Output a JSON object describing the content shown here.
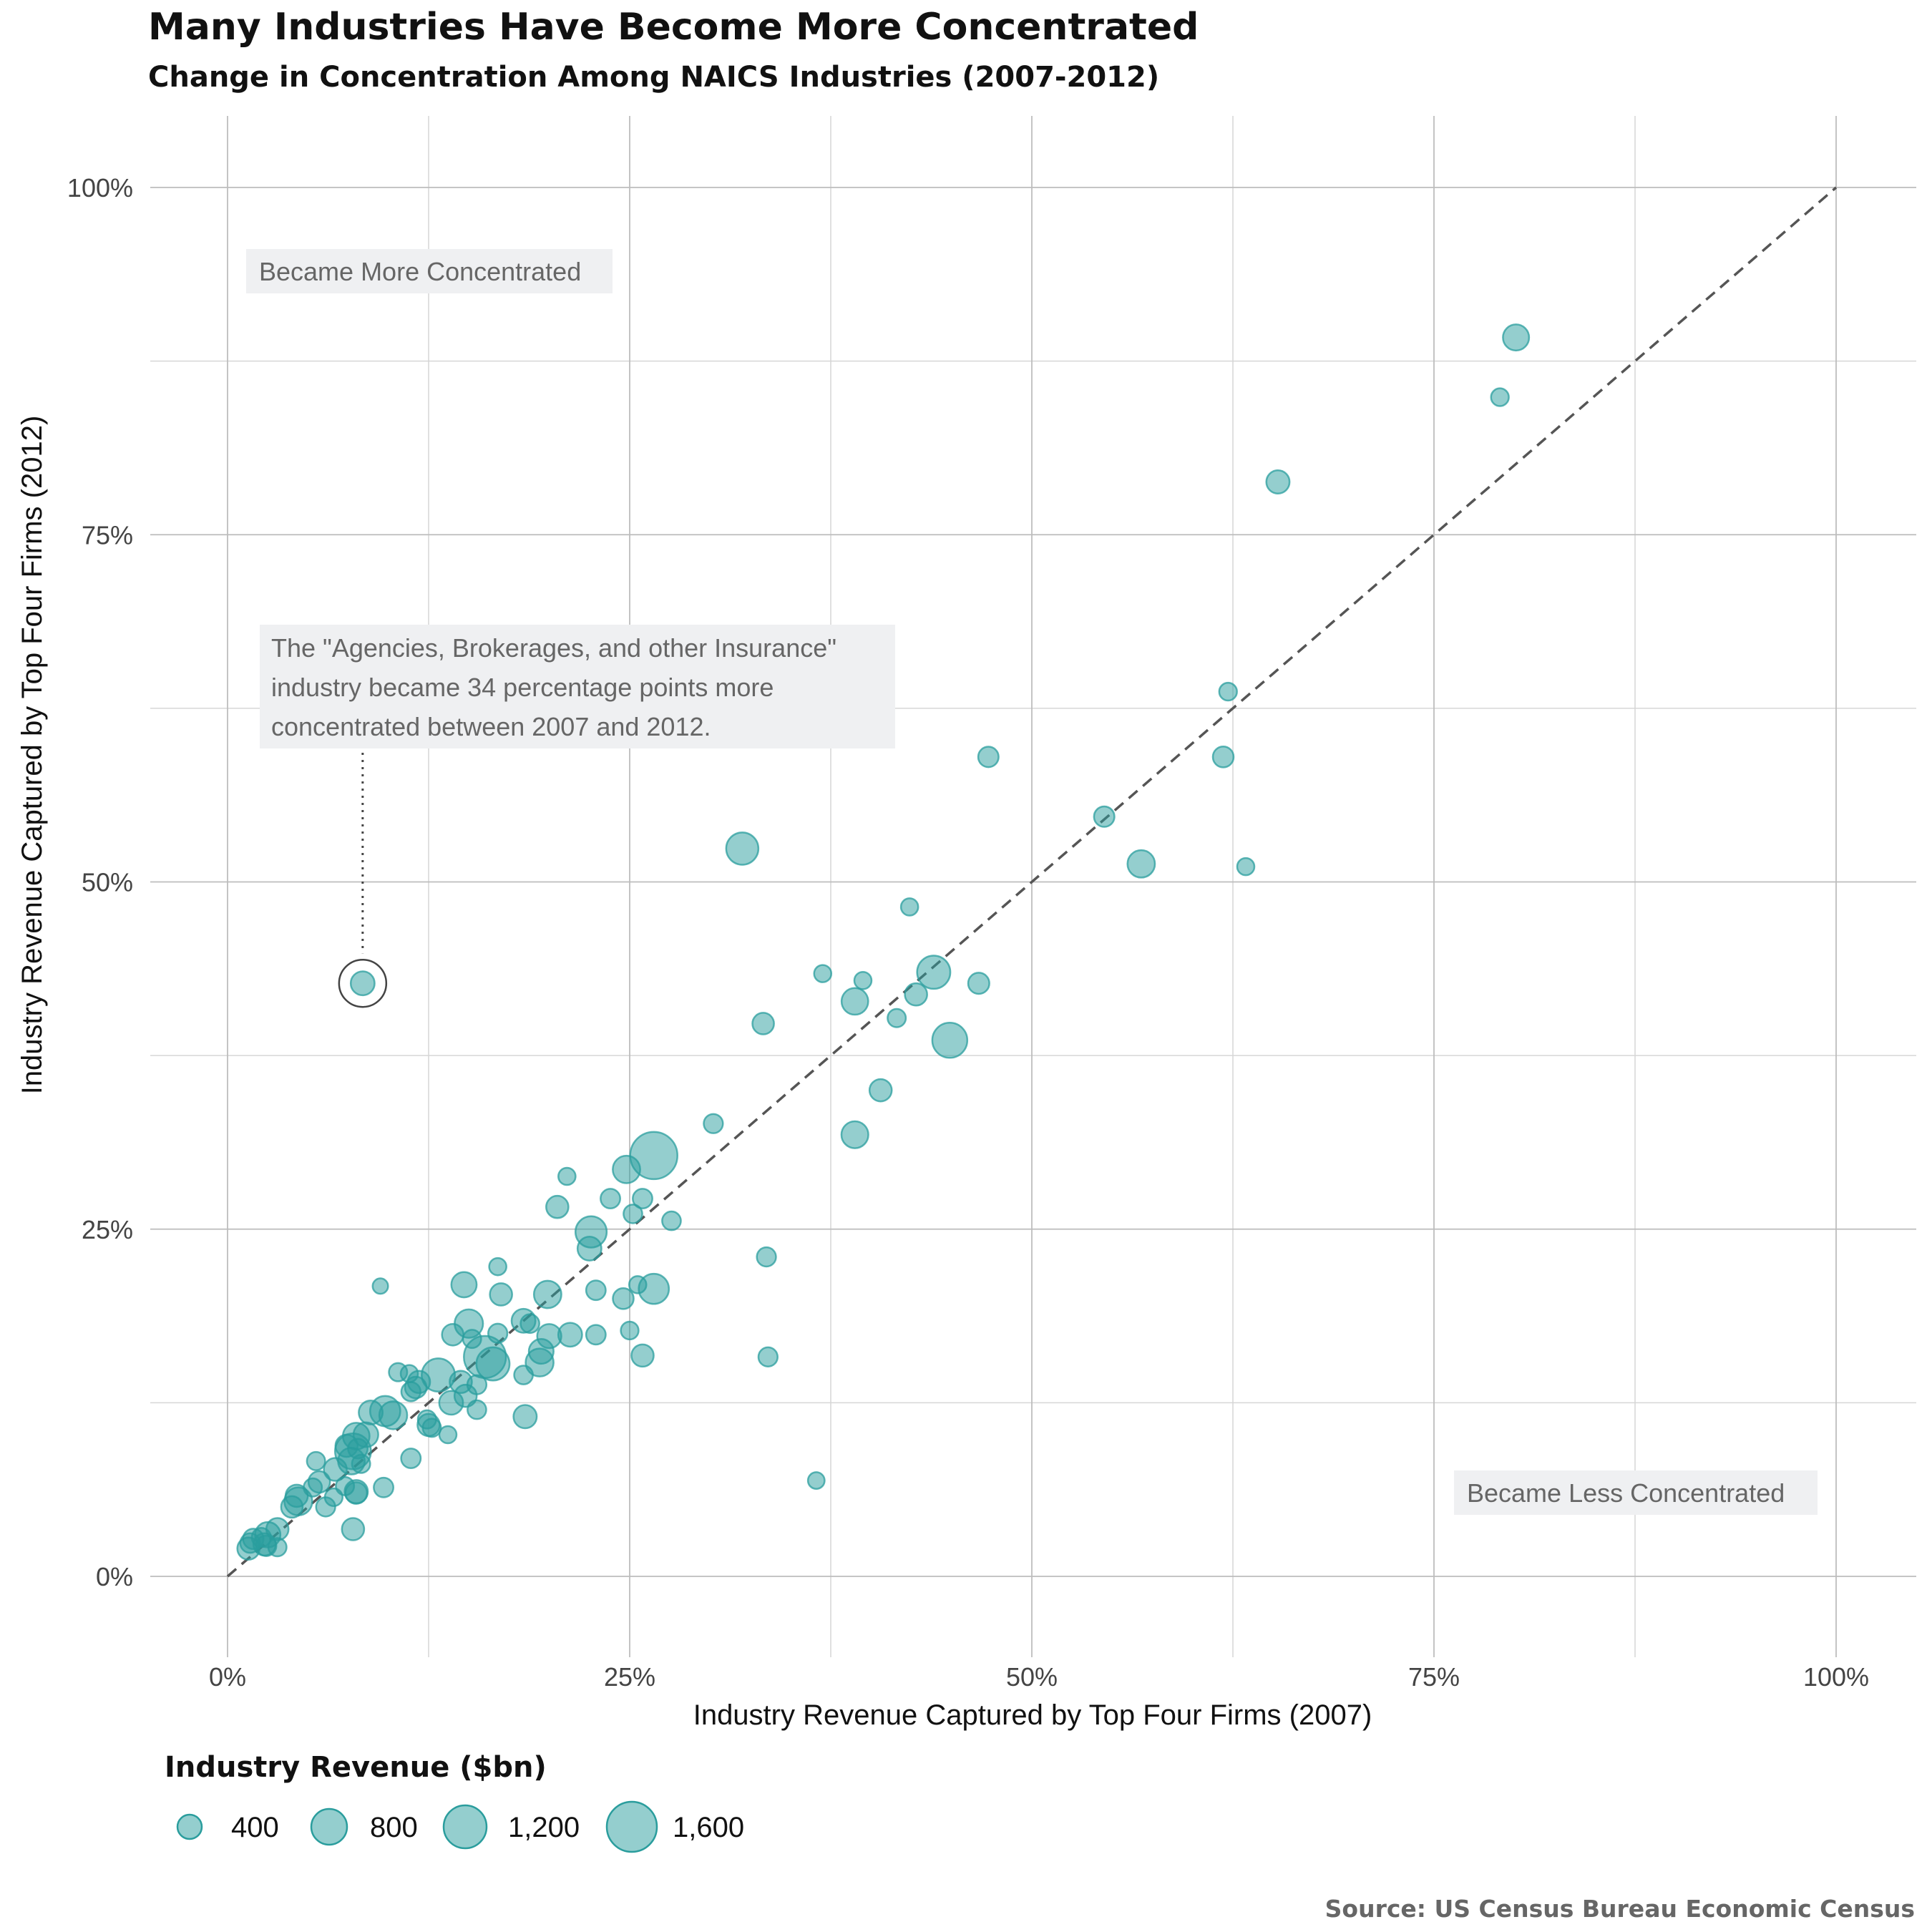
{
  "chart_data": {
    "type": "scatter",
    "title": "Many Industries Have Become More Concentrated",
    "subtitle": "Change in Concentration Among NAICS Industries (2007-2012)",
    "xlabel": "Industry Revenue Captured by Top Four Firms (2007)",
    "ylabel": "Industry Revenue Captured by Top Four Firms (2012)",
    "xlim": [
      0,
      1
    ],
    "ylim": [
      0,
      1
    ],
    "x_ticks": [
      0,
      0.25,
      0.5,
      0.75,
      1
    ],
    "y_ticks": [
      0,
      0.25,
      0.5,
      0.75,
      1
    ],
    "tick_labels": [
      "0%",
      "25%",
      "50%",
      "75%",
      "100%"
    ],
    "reference_line": {
      "type": "dashed",
      "from": [
        0,
        0
      ],
      "to": [
        1,
        1
      ]
    },
    "color": "#2a9d9d",
    "annotations": {
      "more": "Became More Concentrated",
      "less": "Became Less Concentrated",
      "callout_lines": [
        "The \"Agencies, Brokerages, and other Insurance\"",
        "industry became 34 percentage points more",
        "concentrated between 2007 and 2012."
      ],
      "callout_point": {
        "x": 0.084,
        "y": 0.427
      }
    },
    "legend": {
      "title": "Industry Revenue ($bn)",
      "entries": [
        {
          "label": "400",
          "value": 400
        },
        {
          "label": "800",
          "value": 800
        },
        {
          "label": "1,200",
          "value": 1200
        },
        {
          "label": "1,600",
          "value": 1600
        }
      ]
    },
    "points": [
      {
        "x": 0.801,
        "y": 0.892,
        "r": 330
      },
      {
        "x": 0.791,
        "y": 0.849,
        "r": 90
      },
      {
        "x": 0.653,
        "y": 0.788,
        "r": 230
      },
      {
        "x": 0.622,
        "y": 0.637,
        "r": 90
      },
      {
        "x": 0.473,
        "y": 0.59,
        "r": 150
      },
      {
        "x": 0.619,
        "y": 0.59,
        "r": 160
      },
      {
        "x": 0.545,
        "y": 0.547,
        "r": 150
      },
      {
        "x": 0.568,
        "y": 0.513,
        "r": 380
      },
      {
        "x": 0.633,
        "y": 0.511,
        "r": 80
      },
      {
        "x": 0.32,
        "y": 0.524,
        "r": 600
      },
      {
        "x": 0.424,
        "y": 0.482,
        "r": 80
      },
      {
        "x": 0.37,
        "y": 0.434,
        "r": 80
      },
      {
        "x": 0.395,
        "y": 0.429,
        "r": 80
      },
      {
        "x": 0.439,
        "y": 0.435,
        "r": 650
      },
      {
        "x": 0.467,
        "y": 0.427,
        "r": 170
      },
      {
        "x": 0.39,
        "y": 0.414,
        "r": 350
      },
      {
        "x": 0.428,
        "y": 0.419,
        "r": 200
      },
      {
        "x": 0.416,
        "y": 0.402,
        "r": 100
      },
      {
        "x": 0.333,
        "y": 0.398,
        "r": 180
      },
      {
        "x": 0.449,
        "y": 0.386,
        "r": 750
      },
      {
        "x": 0.406,
        "y": 0.35,
        "r": 200
      },
      {
        "x": 0.39,
        "y": 0.318,
        "r": 360
      },
      {
        "x": 0.302,
        "y": 0.326,
        "r": 120
      },
      {
        "x": 0.265,
        "y": 0.303,
        "r": 1600
      },
      {
        "x": 0.248,
        "y": 0.293,
        "r": 380
      },
      {
        "x": 0.211,
        "y": 0.288,
        "r": 80
      },
      {
        "x": 0.238,
        "y": 0.272,
        "r": 130
      },
      {
        "x": 0.258,
        "y": 0.272,
        "r": 130
      },
      {
        "x": 0.205,
        "y": 0.266,
        "r": 200
      },
      {
        "x": 0.252,
        "y": 0.261,
        "r": 110
      },
      {
        "x": 0.276,
        "y": 0.256,
        "r": 110
      },
      {
        "x": 0.226,
        "y": 0.248,
        "r": 550
      },
      {
        "x": 0.225,
        "y": 0.236,
        "r": 250
      },
      {
        "x": 0.335,
        "y": 0.23,
        "r": 120
      },
      {
        "x": 0.168,
        "y": 0.223,
        "r": 80
      },
      {
        "x": 0.147,
        "y": 0.21,
        "r": 300
      },
      {
        "x": 0.255,
        "y": 0.21,
        "r": 80
      },
      {
        "x": 0.095,
        "y": 0.209,
        "r": 50
      },
      {
        "x": 0.265,
        "y": 0.207,
        "r": 500
      },
      {
        "x": 0.229,
        "y": 0.206,
        "r": 130
      },
      {
        "x": 0.17,
        "y": 0.203,
        "r": 200
      },
      {
        "x": 0.199,
        "y": 0.203,
        "r": 380
      },
      {
        "x": 0.246,
        "y": 0.2,
        "r": 160
      },
      {
        "x": 0.184,
        "y": 0.184,
        "r": 250
      },
      {
        "x": 0.15,
        "y": 0.182,
        "r": 420
      },
      {
        "x": 0.188,
        "y": 0.182,
        "r": 110
      },
      {
        "x": 0.168,
        "y": 0.175,
        "r": 120
      },
      {
        "x": 0.14,
        "y": 0.174,
        "r": 180
      },
      {
        "x": 0.2,
        "y": 0.173,
        "r": 260
      },
      {
        "x": 0.213,
        "y": 0.174,
        "r": 250
      },
      {
        "x": 0.229,
        "y": 0.174,
        "r": 130
      },
      {
        "x": 0.25,
        "y": 0.177,
        "r": 90
      },
      {
        "x": 0.152,
        "y": 0.171,
        "r": 100
      },
      {
        "x": 0.195,
        "y": 0.162,
        "r": 280
      },
      {
        "x": 0.16,
        "y": 0.158,
        "r": 1200
      },
      {
        "x": 0.165,
        "y": 0.153,
        "r": 650
      },
      {
        "x": 0.258,
        "y": 0.159,
        "r": 200
      },
      {
        "x": 0.336,
        "y": 0.158,
        "r": 120
      },
      {
        "x": 0.194,
        "y": 0.154,
        "r": 400
      },
      {
        "x": 0.106,
        "y": 0.147,
        "r": 100
      },
      {
        "x": 0.113,
        "y": 0.146,
        "r": 80
      },
      {
        "x": 0.131,
        "y": 0.145,
        "r": 650
      },
      {
        "x": 0.184,
        "y": 0.145,
        "r": 110
      },
      {
        "x": 0.119,
        "y": 0.14,
        "r": 200
      },
      {
        "x": 0.117,
        "y": 0.136,
        "r": 180
      },
      {
        "x": 0.114,
        "y": 0.133,
        "r": 120
      },
      {
        "x": 0.145,
        "y": 0.14,
        "r": 200
      },
      {
        "x": 0.155,
        "y": 0.138,
        "r": 120
      },
      {
        "x": 0.148,
        "y": 0.13,
        "r": 200
      },
      {
        "x": 0.139,
        "y": 0.125,
        "r": 250
      },
      {
        "x": 0.155,
        "y": 0.12,
        "r": 110
      },
      {
        "x": 0.103,
        "y": 0.116,
        "r": 400
      },
      {
        "x": 0.089,
        "y": 0.118,
        "r": 250
      },
      {
        "x": 0.098,
        "y": 0.119,
        "r": 500
      },
      {
        "x": 0.185,
        "y": 0.115,
        "r": 230
      },
      {
        "x": 0.124,
        "y": 0.113,
        "r": 100
      },
      {
        "x": 0.125,
        "y": 0.109,
        "r": 200
      },
      {
        "x": 0.127,
        "y": 0.107,
        "r": 100
      },
      {
        "x": 0.086,
        "y": 0.102,
        "r": 280
      },
      {
        "x": 0.08,
        "y": 0.101,
        "r": 350
      },
      {
        "x": 0.137,
        "y": 0.102,
        "r": 80
      },
      {
        "x": 0.074,
        "y": 0.094,
        "r": 200
      },
      {
        "x": 0.081,
        "y": 0.092,
        "r": 130
      },
      {
        "x": 0.078,
        "y": 0.09,
        "r": 800
      },
      {
        "x": 0.077,
        "y": 0.083,
        "r": 350
      },
      {
        "x": 0.083,
        "y": 0.081,
        "r": 100
      },
      {
        "x": 0.114,
        "y": 0.085,
        "r": 130
      },
      {
        "x": 0.055,
        "y": 0.083,
        "r": 100
      },
      {
        "x": 0.067,
        "y": 0.077,
        "r": 220
      },
      {
        "x": 0.057,
        "y": 0.068,
        "r": 180
      },
      {
        "x": 0.073,
        "y": 0.065,
        "r": 100
      },
      {
        "x": 0.097,
        "y": 0.064,
        "r": 130
      },
      {
        "x": 0.053,
        "y": 0.064,
        "r": 100
      },
      {
        "x": 0.08,
        "y": 0.061,
        "r": 230
      },
      {
        "x": 0.08,
        "y": 0.06,
        "r": 180
      },
      {
        "x": 0.043,
        "y": 0.058,
        "r": 200
      },
      {
        "x": 0.044,
        "y": 0.054,
        "r": 400
      },
      {
        "x": 0.066,
        "y": 0.057,
        "r": 90
      },
      {
        "x": 0.061,
        "y": 0.05,
        "r": 120
      },
      {
        "x": 0.04,
        "y": 0.05,
        "r": 180
      },
      {
        "x": 0.366,
        "y": 0.069,
        "r": 70
      },
      {
        "x": 0.078,
        "y": 0.034,
        "r": 200
      },
      {
        "x": 0.031,
        "y": 0.034,
        "r": 200
      },
      {
        "x": 0.025,
        "y": 0.03,
        "r": 300
      },
      {
        "x": 0.021,
        "y": 0.028,
        "r": 120
      },
      {
        "x": 0.016,
        "y": 0.027,
        "r": 150
      },
      {
        "x": 0.014,
        "y": 0.024,
        "r": 130
      },
      {
        "x": 0.023,
        "y": 0.023,
        "r": 200
      },
      {
        "x": 0.031,
        "y": 0.021,
        "r": 100
      },
      {
        "x": 0.013,
        "y": 0.02,
        "r": 200
      },
      {
        "x": 0.024,
        "y": 0.022,
        "r": 150
      }
    ],
    "source": "Source: US Census Bureau Economic Census"
  }
}
